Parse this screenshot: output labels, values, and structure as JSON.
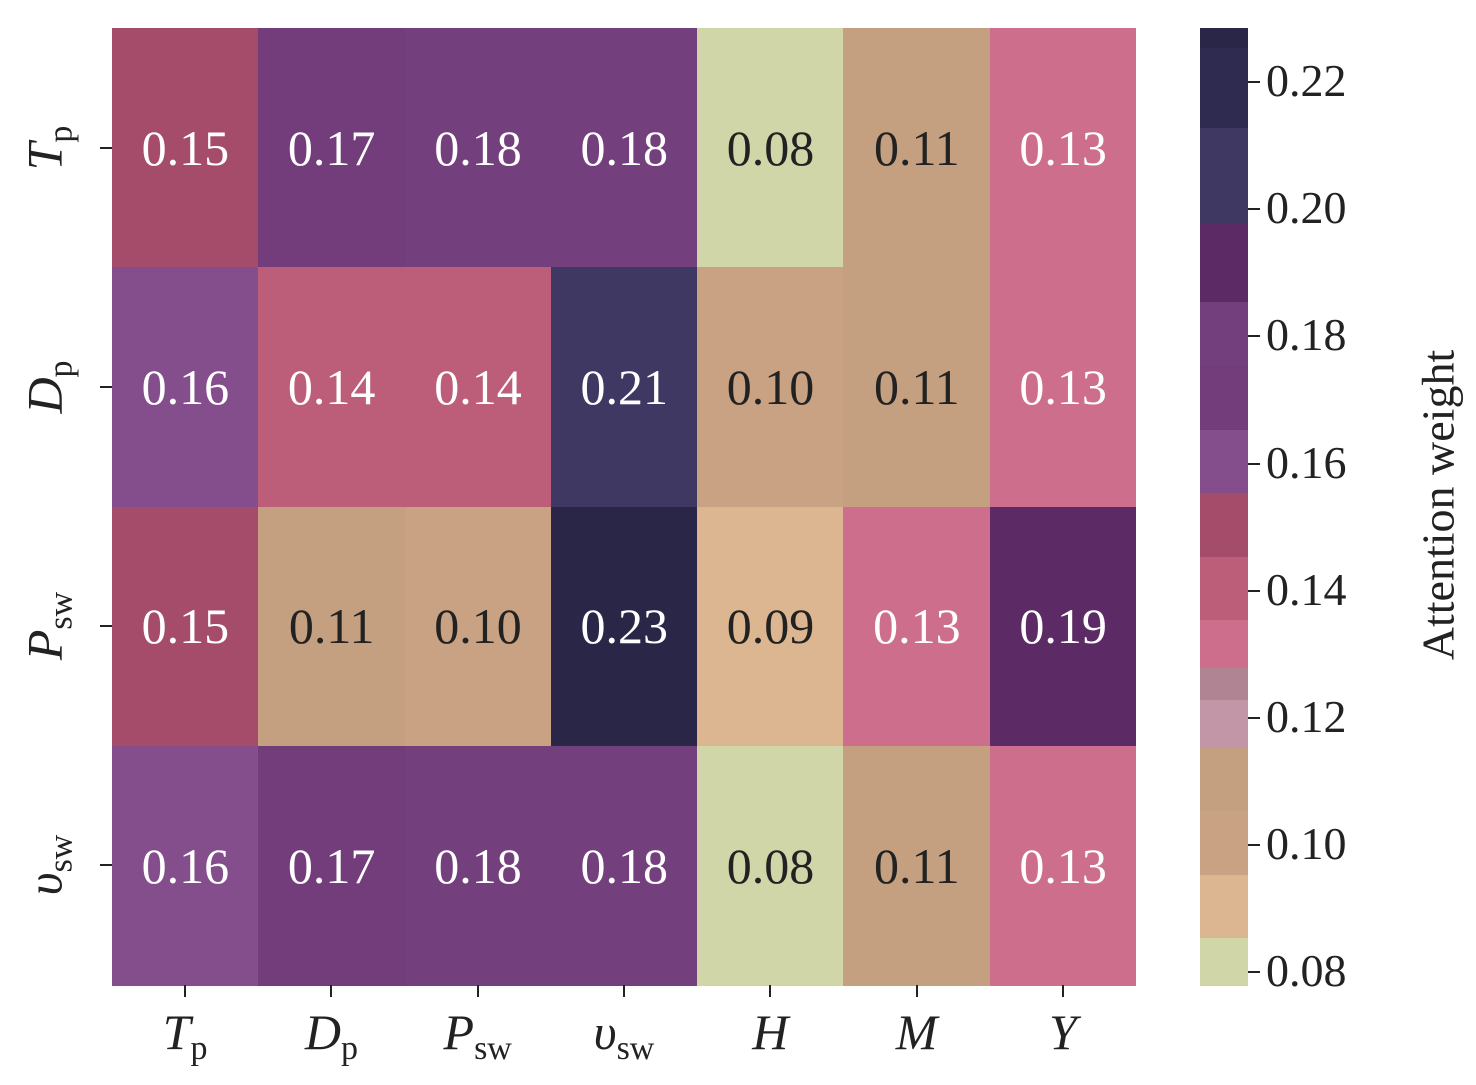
{
  "chart_data": {
    "type": "heatmap",
    "x_labels": [
      {
        "main": "T",
        "sub": "p"
      },
      {
        "main": "D",
        "sub": "p"
      },
      {
        "main": "P",
        "sub": "sw"
      },
      {
        "main": "υ",
        "sub": "sw"
      },
      {
        "main": "H",
        "sub": ""
      },
      {
        "main": "M",
        "sub": ""
      },
      {
        "main": "Y",
        "sub": ""
      }
    ],
    "y_labels": [
      {
        "main": "T",
        "sub": "p"
      },
      {
        "main": "D",
        "sub": "p"
      },
      {
        "main": "P",
        "sub": "sw"
      },
      {
        "main": "υ",
        "sub": "sw"
      }
    ],
    "values": [
      [
        0.15,
        0.17,
        0.18,
        0.18,
        0.08,
        0.11,
        0.13
      ],
      [
        0.16,
        0.14,
        0.14,
        0.21,
        0.1,
        0.11,
        0.13
      ],
      [
        0.15,
        0.11,
        0.1,
        0.23,
        0.09,
        0.13,
        0.19
      ],
      [
        0.16,
        0.17,
        0.18,
        0.18,
        0.08,
        0.11,
        0.13
      ]
    ],
    "colorbar": {
      "label": "Attention weight",
      "ticks": [
        "0.08",
        "0.10",
        "0.12",
        "0.14",
        "0.16",
        "0.18",
        "0.20",
        "0.22"
      ],
      "range": [
        0.078,
        0.2285
      ]
    },
    "colormap": [
      {
        "v": 0.08,
        "color": "#d0d6a8"
      },
      {
        "v": 0.09,
        "color": "#dcb690"
      },
      {
        "v": 0.1,
        "color": "#c8a282"
      },
      {
        "v": 0.11,
        "color": "#c4a080"
      },
      {
        "v": 0.12,
        "color": "#c296a6"
      },
      {
        "v": 0.125,
        "color": "#b08492"
      },
      {
        "v": 0.13,
        "color": "#cc6e8c"
      },
      {
        "v": 0.14,
        "color": "#bc5e7a"
      },
      {
        "v": 0.15,
        "color": "#a54c6a"
      },
      {
        "v": 0.16,
        "color": "#844e8c"
      },
      {
        "v": 0.17,
        "color": "#733d7c"
      },
      {
        "v": 0.18,
        "color": "#733f7c"
      },
      {
        "v": 0.19,
        "color": "#5c2a64"
      },
      {
        "v": 0.205,
        "color": "#3e3862"
      },
      {
        "v": 0.22,
        "color": "#2e2a50"
      },
      {
        "v": 0.23,
        "color": "#2a2648"
      }
    ]
  }
}
